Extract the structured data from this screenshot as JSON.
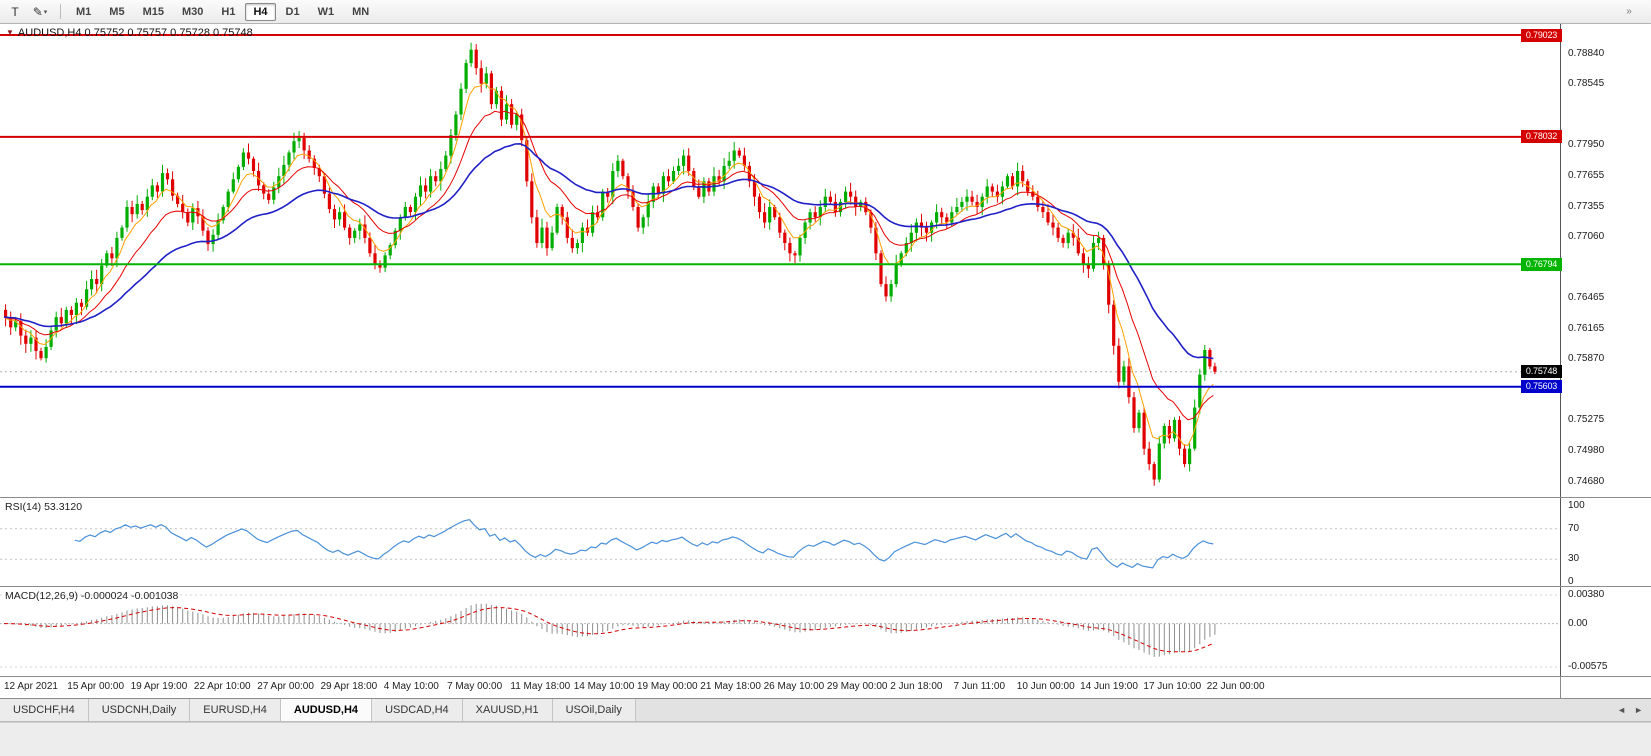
{
  "ui": {
    "toolbar": {
      "tools": [
        {
          "name": "text-tool",
          "glyph": "T"
        },
        {
          "name": "draw-tool",
          "glyph": "✎"
        }
      ],
      "caret": "▾",
      "timeframes": [
        "M1",
        "M5",
        "M15",
        "M30",
        "H1",
        "H4",
        "D1",
        "W1",
        "MN"
      ],
      "active_timeframe": "H4",
      "overflow_glyph": "»"
    },
    "chart_header": "AUDUSD,H4  0.75752 0.75757 0.75728 0.75748",
    "header_icon": "▼",
    "tabs": {
      "items": [
        "USDCHF,H4",
        "USDCNH,Daily",
        "EURUSD,H4",
        "AUDUSD,H4",
        "USDCAD,H4",
        "XAUUSD,H1",
        "USOil,Daily"
      ],
      "active": "AUDUSD,H4",
      "scroll_left_glyph": "◄",
      "scroll_right_glyph": "►"
    }
  },
  "chart_data": {
    "type": "candlestick",
    "symbol": "AUDUSD",
    "timeframe": "H4",
    "ohlc_header": {
      "open": "0.75752",
      "high": "0.75757",
      "low": "0.75728",
      "close": "0.75748"
    },
    "y_range": [
      0.7453,
      0.7913
    ],
    "first_open": 0.7635,
    "closes": [
      0.7628,
      0.7618,
      0.7624,
      0.761,
      0.7602,
      0.7608,
      0.7595,
      0.7588,
      0.7599,
      0.7615,
      0.7628,
      0.7622,
      0.7635,
      0.763,
      0.7642,
      0.7638,
      0.7655,
      0.7665,
      0.766,
      0.7678,
      0.769,
      0.7685,
      0.7705,
      0.7715,
      0.7735,
      0.7728,
      0.7738,
      0.7732,
      0.7745,
      0.7756,
      0.775,
      0.7768,
      0.7762,
      0.7746,
      0.7738,
      0.773,
      0.772,
      0.7734,
      0.7726,
      0.7712,
      0.7699,
      0.7708,
      0.7722,
      0.7735,
      0.775,
      0.7762,
      0.7774,
      0.7788,
      0.7782,
      0.777,
      0.7756,
      0.7748,
      0.7742,
      0.7754,
      0.7765,
      0.7776,
      0.7788,
      0.7799,
      0.7802,
      0.779,
      0.7782,
      0.7773,
      0.7765,
      0.7748,
      0.7733,
      0.7723,
      0.773,
      0.7715,
      0.7705,
      0.7712,
      0.7718,
      0.7705,
      0.769,
      0.768,
      0.7676,
      0.7688,
      0.7698,
      0.7712,
      0.7725,
      0.7735,
      0.773,
      0.7745,
      0.7756,
      0.775,
      0.7765,
      0.776,
      0.7772,
      0.7785,
      0.7805,
      0.7825,
      0.785,
      0.7875,
      0.7888,
      0.787,
      0.7855,
      0.7865,
      0.7835,
      0.7848,
      0.782,
      0.7835,
      0.7815,
      0.7825,
      0.78,
      0.776,
      0.7725,
      0.77,
      0.7715,
      0.7695,
      0.771,
      0.7735,
      0.7725,
      0.7705,
      0.7695,
      0.77,
      0.7715,
      0.771,
      0.773,
      0.7725,
      0.775,
      0.7745,
      0.777,
      0.778,
      0.7765,
      0.775,
      0.7735,
      0.7715,
      0.7725,
      0.774,
      0.7755,
      0.7748,
      0.7765,
      0.776,
      0.777,
      0.7775,
      0.7785,
      0.777,
      0.7755,
      0.7745,
      0.776,
      0.775,
      0.7765,
      0.776,
      0.7775,
      0.778,
      0.779,
      0.7785,
      0.7775,
      0.776,
      0.7745,
      0.773,
      0.772,
      0.7735,
      0.7725,
      0.771,
      0.77,
      0.769,
      0.7688,
      0.7705,
      0.772,
      0.773,
      0.7725,
      0.7735,
      0.7745,
      0.774,
      0.773,
      0.774,
      0.775,
      0.7745,
      0.7735,
      0.774,
      0.773,
      0.7715,
      0.769,
      0.766,
      0.7648,
      0.766,
      0.768,
      0.769,
      0.77,
      0.771,
      0.772,
      0.7715,
      0.771,
      0.772,
      0.773,
      0.7725,
      0.772,
      0.773,
      0.7735,
      0.774,
      0.7745,
      0.774,
      0.7735,
      0.7745,
      0.7755,
      0.775,
      0.7745,
      0.7755,
      0.7765,
      0.7755,
      0.777,
      0.776,
      0.775,
      0.7745,
      0.7735,
      0.773,
      0.772,
      0.7715,
      0.7705,
      0.77,
      0.771,
      0.7705,
      0.769,
      0.768,
      0.7675,
      0.77,
      0.7705,
      0.768,
      0.764,
      0.76,
      0.7565,
      0.758,
      0.755,
      0.752,
      0.7535,
      0.75,
      0.7485,
      0.747,
      0.7505,
      0.7522,
      0.751,
      0.7528,
      0.75,
      0.7485,
      0.75,
      0.754,
      0.7572,
      0.7596,
      0.758,
      0.75748
    ],
    "special_high": {
      "index": 92,
      "price": 0.7891
    },
    "special_low": {
      "index": 227,
      "price": 0.7468
    },
    "horizontal_levels": [
      {
        "price": 0.79023,
        "label": "0.79023",
        "color": "#D40000"
      },
      {
        "price": 0.78032,
        "label": "0.78032",
        "color": "#D40000"
      },
      {
        "price": 0.76794,
        "label": "0.76794",
        "color": "#00B400"
      },
      {
        "price": 0.75603,
        "label": "0.75603",
        "color": "#0000CD"
      }
    ],
    "current_price": {
      "value": 0.75748,
      "label": "0.75748",
      "box_color": "#000000"
    },
    "price_axis_ticks": [
      "0.78840",
      "0.78545",
      "0.77950",
      "0.77655",
      "0.77355",
      "0.77060",
      "0.76465",
      "0.76165",
      "0.75870",
      "0.75275",
      "0.74980",
      "0.74680"
    ],
    "time_labels": [
      "12 Apr 2021",
      "15 Apr 00:00",
      "19 Apr 19:00",
      "22 Apr 10:00",
      "27 Apr 00:00",
      "29 Apr 18:00",
      "4 May 10:00",
      "7 May 00:00",
      "11 May 18:00",
      "14 May 10:00",
      "19 May 00:00",
      "21 May 18:00",
      "26 May 10:00",
      "29 May 00:00",
      "2 Jun 18:00",
      "7 Jun 11:00",
      "10 Jun 00:00",
      "14 Jun 19:00",
      "17 Jun 10:00",
      "22 Jun 00:00"
    ],
    "colors": {
      "up": "#00AD00",
      "down": "#E00000",
      "ma_fast": "#FFA000",
      "ma_mid": "#E80000",
      "ma_slow": "#2020C8",
      "rsi_line": "#4A90D8",
      "macd_hist": "#8F8F8F",
      "macd_signal": "#D40000",
      "current_line": "#B0B0B0"
    },
    "indicators": {
      "rsi": {
        "label": "RSI(14) 53.3120",
        "period": 14,
        "value": 53.312,
        "scale_ticks": [
          "100",
          "70",
          "30",
          "0"
        ],
        "levels": [
          70,
          30
        ]
      },
      "macd": {
        "label": "MACD(12,26,9) -0.000024 -0.001038",
        "params": [
          12,
          26,
          9
        ],
        "values": [
          -2.4e-05,
          -0.001038
        ],
        "scale_ticks": [
          "0.00380",
          "0.00",
          "-0.00575"
        ],
        "range": [
          -0.00575,
          0.0038
        ]
      }
    }
  }
}
